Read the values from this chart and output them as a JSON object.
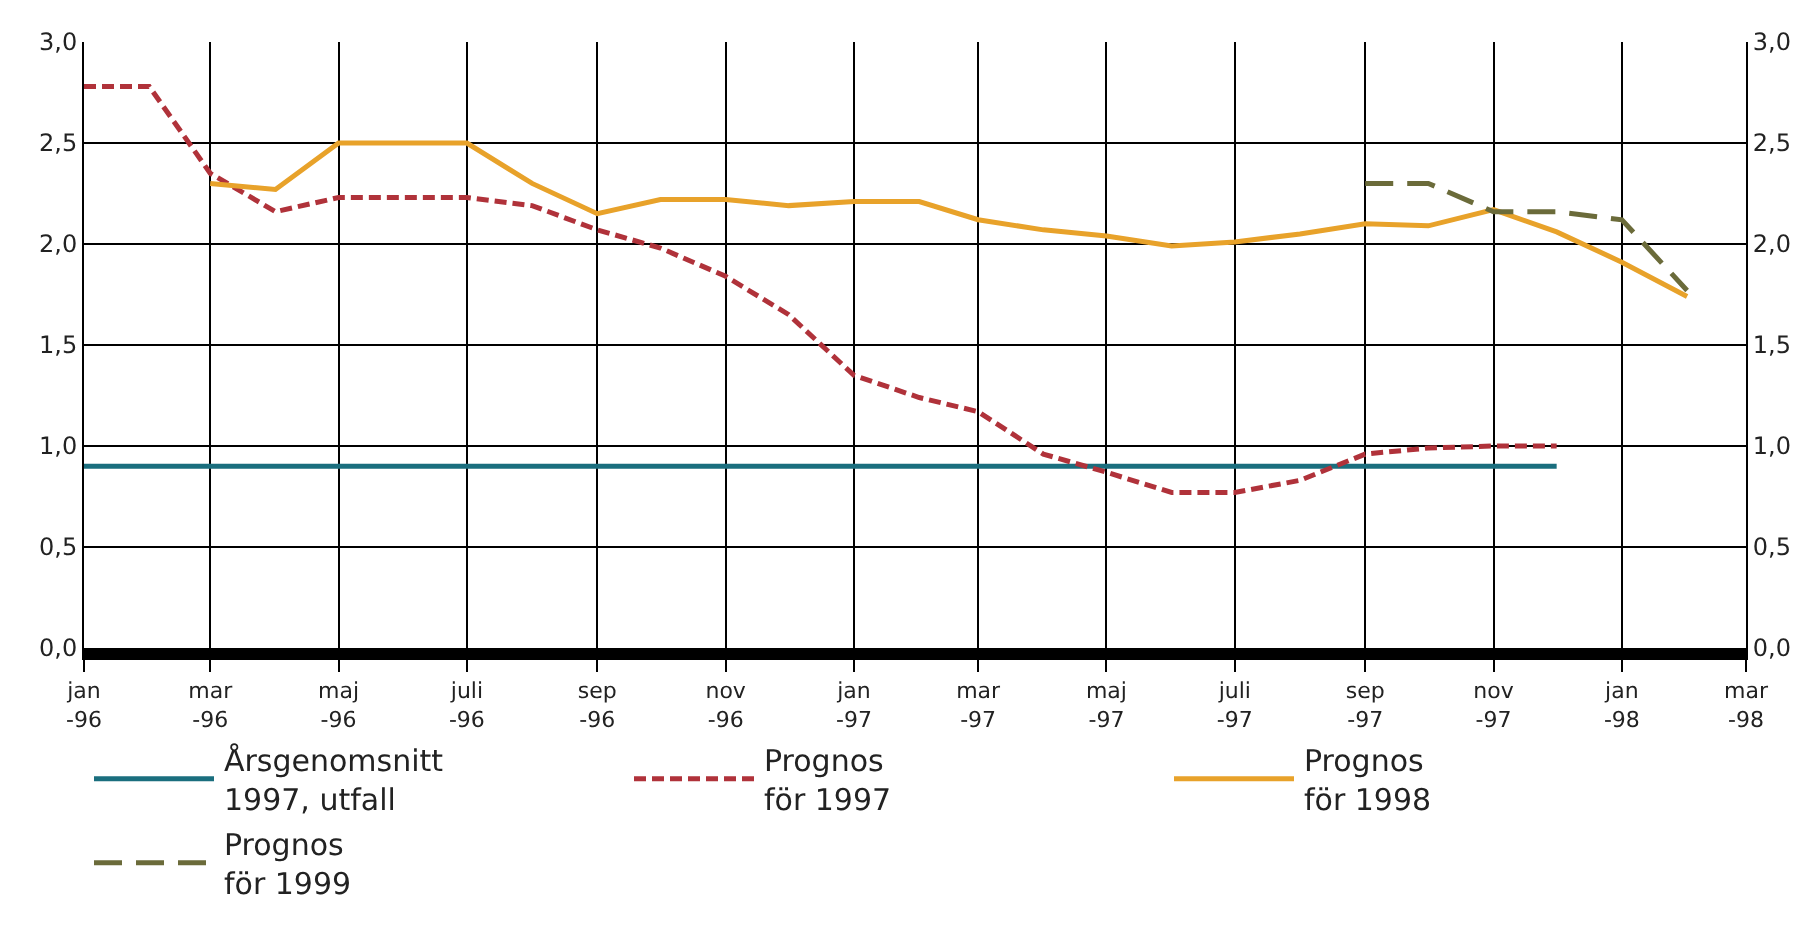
{
  "chart_data": {
    "type": "line",
    "xlim": [
      "1996-01",
      "1998-03"
    ],
    "xticks": [
      {
        "value": "1996-01",
        "label": "jan\n-96"
      },
      {
        "value": "1996-03",
        "label": "mar\n-96"
      },
      {
        "value": "1996-05",
        "label": "maj\n-96"
      },
      {
        "value": "1996-07",
        "label": "juli\n-96"
      },
      {
        "value": "1996-09",
        "label": "sep\n-96"
      },
      {
        "value": "1996-11",
        "label": "nov\n-96"
      },
      {
        "value": "1997-01",
        "label": "jan\n-97"
      },
      {
        "value": "1997-03",
        "label": "mar\n-97"
      },
      {
        "value": "1997-05",
        "label": "maj\n-97"
      },
      {
        "value": "1997-07",
        "label": "juli\n-97"
      },
      {
        "value": "1997-09",
        "label": "sep\n-97"
      },
      {
        "value": "1997-11",
        "label": "nov\n-97"
      },
      {
        "value": "1998-01",
        "label": "jan\n-98"
      },
      {
        "value": "1998-03",
        "label": "mar\n-98"
      }
    ],
    "ylim": [
      0,
      3
    ],
    "yticks": [
      {
        "value": 0,
        "label": "0,0"
      },
      {
        "value": 0.5,
        "label": "0,5"
      },
      {
        "value": 1,
        "label": "1,0"
      },
      {
        "value": 1.5,
        "label": "1,5"
      },
      {
        "value": 2,
        "label": "2,0"
      },
      {
        "value": 2.5,
        "label": "2,5"
      },
      {
        "value": 3,
        "label": "3,0"
      }
    ],
    "y2lim": [
      0,
      3
    ],
    "y2ticks": [
      {
        "value": 0,
        "label": "0,0"
      },
      {
        "value": 0.5,
        "label": "0,5"
      },
      {
        "value": 1,
        "label": "1,0"
      },
      {
        "value": 1.5,
        "label": "1,5"
      },
      {
        "value": 2,
        "label": "2,0"
      },
      {
        "value": 2.5,
        "label": "2,5"
      },
      {
        "value": 3,
        "label": "3,0"
      }
    ],
    "grid": true,
    "legend": "bottom",
    "marker": "none",
    "series": [
      {
        "name": "Årsgenomsnitt\n1997, utfall",
        "color": "#1a6e7e",
        "line_style": "solid",
        "x": [
          "1996-01",
          "1997-12"
        ],
        "values": [
          0.9,
          0.9
        ]
      },
      {
        "name": "Prognos\nför 1997",
        "color": "#b0323a",
        "line_style": "dotted",
        "x": [
          "1996-01",
          "1996-02",
          "1996-03",
          "1996-04",
          "1996-05",
          "1996-06",
          "1996-07",
          "1996-08",
          "1996-09",
          "1996-10",
          "1996-11",
          "1996-12",
          "1997-01",
          "1997-02",
          "1997-03",
          "1997-04",
          "1997-05",
          "1997-06",
          "1997-07",
          "1997-08",
          "1997-09",
          "1997-10",
          "1997-11",
          "1997-12"
        ],
        "values": [
          2.78,
          2.78,
          2.35,
          2.16,
          2.23,
          2.23,
          2.23,
          2.19,
          2.07,
          1.98,
          1.84,
          1.65,
          1.35,
          1.24,
          1.17,
          0.96,
          0.87,
          0.77,
          0.77,
          0.83,
          0.96,
          0.99,
          1.0,
          1.0
        ]
      },
      {
        "name": "Prognos\nför 1998",
        "color": "#e8a22a",
        "line_style": "solid",
        "x": [
          "1996-03",
          "1996-04",
          "1996-05",
          "1996-06",
          "1996-07",
          "1996-08",
          "1996-09",
          "1996-10",
          "1996-11",
          "1996-12",
          "1997-01",
          "1997-02",
          "1997-03",
          "1997-04",
          "1997-05",
          "1997-06",
          "1997-07",
          "1997-08",
          "1997-09",
          "1997-10",
          "1997-11",
          "1997-12",
          "1998-01",
          "1998-02"
        ],
        "values": [
          2.3,
          2.27,
          2.5,
          2.5,
          2.5,
          2.3,
          2.15,
          2.22,
          2.22,
          2.19,
          2.21,
          2.21,
          2.12,
          2.07,
          2.04,
          1.99,
          2.01,
          2.05,
          2.1,
          2.09,
          2.17,
          2.06,
          1.91,
          1.74
        ]
      },
      {
        "name": "Prognos\nför 1999",
        "color": "#6b6b3a",
        "line_style": "dashed",
        "x": [
          "1997-09",
          "1997-10",
          "1997-11",
          "1997-12",
          "1998-01",
          "1998-02"
        ],
        "values": [
          2.3,
          2.3,
          2.16,
          2.16,
          2.12,
          1.77
        ]
      }
    ]
  }
}
